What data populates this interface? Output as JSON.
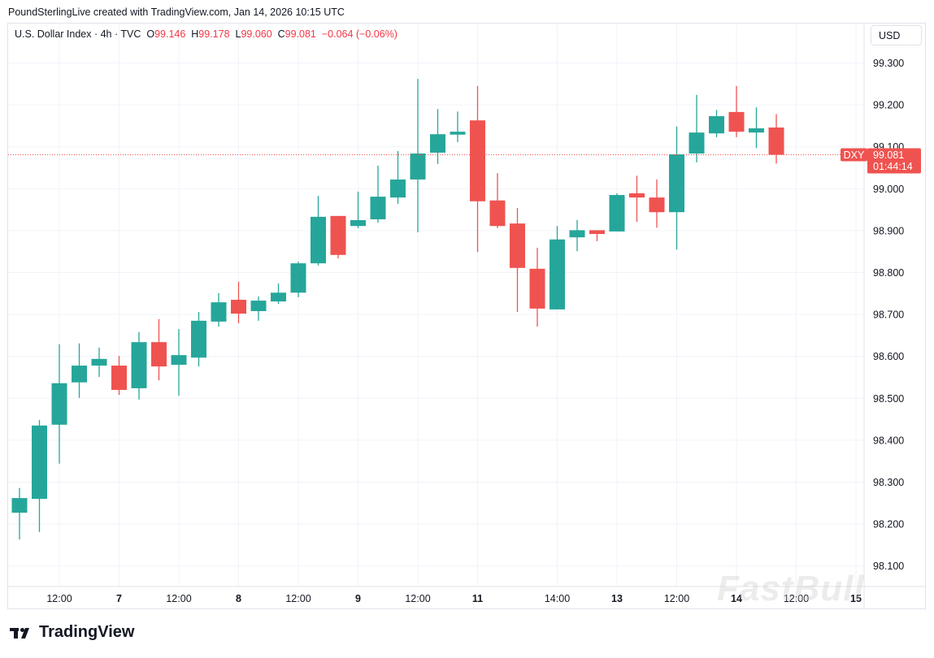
{
  "credit": "PoundSterlingLive created with TradingView.com, Jan 14, 2026 10:15 UTC",
  "legend": {
    "symbol": "U.S. Dollar Index · 4h · TVC",
    "o_label": "O",
    "o": "99.146",
    "h_label": "H",
    "h": "99.178",
    "l_label": "L",
    "l": "99.060",
    "c_label": "C",
    "c": "99.081",
    "change": "−0.064 (−0.06%)"
  },
  "currency": "USD",
  "price_tag": {
    "ticker": "DXY",
    "price": "99.081",
    "countdown": "01:44:14",
    "color": "#ef5350"
  },
  "logo": "TradingView",
  "watermark": "FastBull",
  "colors": {
    "up": "#26a69a",
    "down": "#ef5350",
    "grid": "#f0f3fa"
  },
  "chart_data": {
    "type": "candlestick",
    "ylim": [
      98.06,
      99.33
    ],
    "y_ticks": [
      "98.100",
      "98.200",
      "98.300",
      "98.400",
      "98.500",
      "98.600",
      "98.700",
      "98.800",
      "98.900",
      "99.000",
      "99.100",
      "99.200",
      "99.300"
    ],
    "x_ticks": [
      {
        "label": "12:00",
        "at": 2,
        "bold": false
      },
      {
        "label": "7",
        "at": 5,
        "bold": true
      },
      {
        "label": "12:00",
        "at": 8,
        "bold": false
      },
      {
        "label": "8",
        "at": 11,
        "bold": true
      },
      {
        "label": "12:00",
        "at": 14,
        "bold": false
      },
      {
        "label": "9",
        "at": 17,
        "bold": true
      },
      {
        "label": "12:00",
        "at": 20,
        "bold": false
      },
      {
        "label": "11",
        "at": 23,
        "bold": true
      },
      {
        "label": "14:00",
        "at": 27,
        "bold": false
      },
      {
        "label": "13",
        "at": 30,
        "bold": true
      },
      {
        "label": "12:00",
        "at": 33,
        "bold": false
      },
      {
        "label": "14",
        "at": 36,
        "bold": true
      },
      {
        "label": "12:00",
        "at": 39,
        "bold": false
      },
      {
        "label": "15",
        "at": 42,
        "bold": true
      }
    ],
    "grid": true,
    "last_price_line": 99.081,
    "ohlc": [
      [
        98.227,
        98.286,
        98.163,
        98.262
      ],
      [
        98.26,
        98.448,
        98.181,
        98.435
      ],
      [
        98.437,
        98.629,
        98.344,
        98.536
      ],
      [
        98.538,
        98.631,
        98.501,
        98.578
      ],
      [
        98.578,
        98.621,
        98.551,
        98.594
      ],
      [
        98.578,
        98.601,
        98.508,
        98.52
      ],
      [
        98.524,
        98.658,
        98.497,
        98.634
      ],
      [
        98.634,
        98.689,
        98.543,
        98.576
      ],
      [
        98.58,
        98.665,
        98.506,
        98.603
      ],
      [
        98.597,
        98.706,
        98.576,
        98.685
      ],
      [
        98.683,
        98.751,
        98.671,
        98.729
      ],
      [
        98.735,
        98.778,
        98.679,
        98.702
      ],
      [
        98.708,
        98.743,
        98.685,
        98.733
      ],
      [
        98.731,
        98.774,
        98.725,
        98.752
      ],
      [
        98.752,
        98.826,
        98.741,
        98.822
      ],
      [
        98.822,
        98.983,
        98.817,
        98.933
      ],
      [
        98.935,
        98.935,
        98.834,
        98.842
      ],
      [
        98.911,
        98.993,
        98.906,
        98.925
      ],
      [
        98.927,
        99.055,
        98.919,
        98.981
      ],
      [
        98.979,
        99.09,
        98.964,
        99.022
      ],
      [
        99.022,
        99.262,
        98.896,
        99.084
      ],
      [
        99.086,
        99.19,
        99.059,
        99.13
      ],
      [
        99.129,
        99.184,
        99.111,
        99.136
      ],
      [
        99.163,
        99.245,
        98.849,
        98.97
      ],
      [
        98.972,
        99.037,
        98.906,
        98.911
      ],
      [
        98.917,
        98.954,
        98.706,
        98.811
      ],
      [
        98.809,
        98.859,
        98.671,
        98.714
      ],
      [
        98.712,
        98.911,
        98.712,
        98.879
      ],
      [
        98.884,
        98.925,
        98.851,
        98.901
      ],
      [
        98.901,
        98.901,
        98.875,
        98.892
      ],
      [
        98.898,
        98.989,
        98.898,
        98.985
      ],
      [
        98.989,
        99.031,
        98.921,
        98.979
      ],
      [
        98.979,
        99.022,
        98.907,
        98.944
      ],
      [
        98.944,
        99.148,
        98.855,
        99.082
      ],
      [
        99.084,
        99.224,
        99.063,
        99.134
      ],
      [
        99.132,
        99.188,
        99.123,
        99.173
      ],
      [
        99.183,
        99.245,
        99.123,
        99.136
      ],
      [
        99.134,
        99.194,
        99.097,
        99.144
      ],
      [
        99.146,
        99.178,
        99.06,
        99.081
      ]
    ]
  }
}
